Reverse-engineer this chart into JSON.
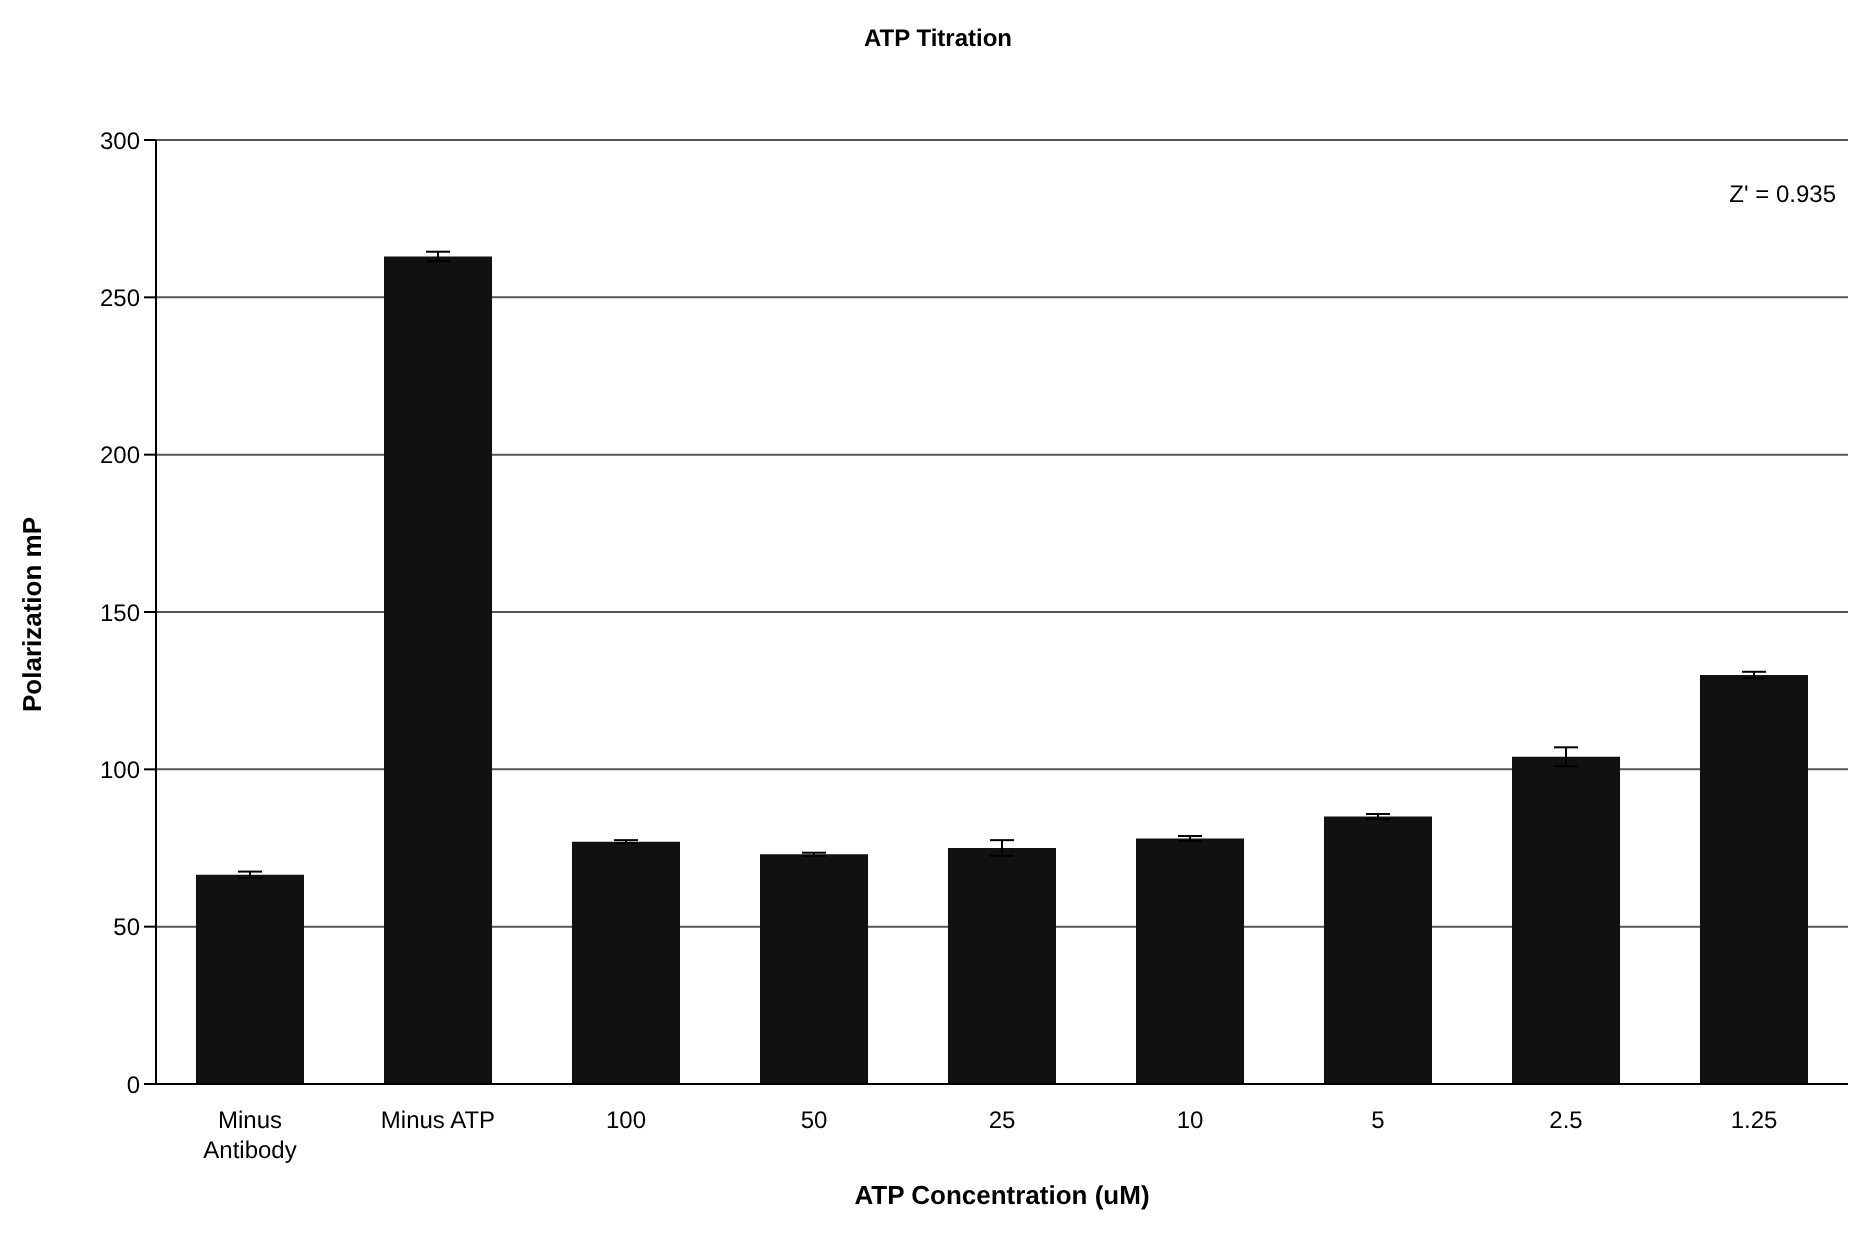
{
  "chart_data": {
    "type": "bar",
    "title": "ATP Titration",
    "xlabel": "ATP Concentration (uM)",
    "ylabel": "Polarization mP",
    "categories": [
      "Minus Antibody",
      "Minus ATP",
      "100",
      "50",
      "25",
      "10",
      "5",
      "2.5",
      "1.25"
    ],
    "values": [
      66.5,
      263,
      77,
      73,
      75,
      78,
      85,
      104,
      130
    ],
    "errors": [
      1,
      1.5,
      0.5,
      0.5,
      2.5,
      0.8,
      0.8,
      3,
      1
    ],
    "color": "#111111",
    "ylim": [
      0,
      300
    ],
    "yticks": [
      0,
      50,
      100,
      150,
      200,
      250,
      300
    ],
    "grid": "y",
    "annotations": [
      "Z' = 0.935"
    ]
  }
}
